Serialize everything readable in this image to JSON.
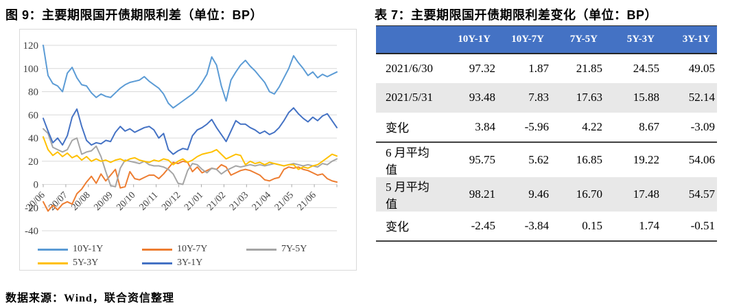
{
  "figure": {
    "title": "图 9：主要期限国开债期限利差（单位：BP）",
    "source_note": "数据来源：Wind，联合资信整理"
  },
  "table": {
    "title": "表 7：主要期限国开债期限利差变化（单位：BP）",
    "header_bg": "#4472c4",
    "header_text_color": "#ffffff",
    "shaded_row_bg": "#e8e8e8",
    "columns": [
      "10Y-1Y",
      "10Y-7Y",
      "7Y-5Y",
      "5Y-3Y",
      "3Y-1Y"
    ],
    "rows": [
      {
        "label": "2021/6/30",
        "values": [
          "97.32",
          "1.87",
          "21.85",
          "24.55",
          "49.05"
        ],
        "shaded": false,
        "block_end": false
      },
      {
        "label": "2021/5/31",
        "values": [
          "93.48",
          "7.83",
          "17.63",
          "15.88",
          "52.14"
        ],
        "shaded": true,
        "block_end": false
      },
      {
        "label": "变化",
        "values": [
          "3.84",
          "-5.96",
          "4.22",
          "8.67",
          "-3.09"
        ],
        "shaded": false,
        "block_end": true
      },
      {
        "label": "6 月平均值",
        "values": [
          "95.75",
          "5.62",
          "16.85",
          "19.22",
          "54.06"
        ],
        "shaded": false,
        "block_end": false
      },
      {
        "label": "5 月平均值",
        "values": [
          "98.21",
          "9.46",
          "16.70",
          "17.48",
          "54.57"
        ],
        "shaded": true,
        "block_end": false
      },
      {
        "label": "变化",
        "values": [
          "-2.45",
          "-3.84",
          "0.15",
          "1.74",
          "-0.51"
        ],
        "shaded": false,
        "block_end": false
      }
    ]
  },
  "chart_data": {
    "type": "line",
    "title": "图 9：主要期限国开债期限利差（单位：BP）",
    "unit": "BP",
    "grid": true,
    "legend_position": "bottom",
    "ylim": [
      -40,
      120
    ],
    "y_ticks": [
      120,
      100,
      80,
      60,
      40,
      20,
      0,
      -20,
      -40
    ],
    "x_tick_labels": [
      "20/06",
      "20/07",
      "20/08",
      "20/09",
      "20/10",
      "20/11",
      "20/12",
      "21/01",
      "21/02",
      "21/03",
      "21/04",
      "21/05",
      "21/06"
    ],
    "colors": {
      "grid": "#d9d9d9",
      "axis_text": "#404040",
      "tick": "#a6a6a6"
    },
    "series": [
      {
        "name": "10Y-1Y",
        "color": "#5b9bd5",
        "values": [
          120,
          94,
          87,
          85,
          80,
          96,
          101,
          92,
          86,
          85,
          79,
          75,
          78,
          76,
          75,
          79,
          83,
          86,
          88,
          89,
          90,
          93,
          89,
          86,
          83,
          78,
          70,
          66,
          69,
          72,
          75,
          78,
          82,
          88,
          95,
          110,
          103,
          85,
          72,
          90,
          97,
          103,
          107,
          102,
          98,
          93,
          88,
          80,
          78,
          84,
          92,
          100,
          111,
          105,
          100,
          94,
          97,
          92,
          95,
          93,
          95,
          97
        ]
      },
      {
        "name": "10Y-7Y",
        "color": "#ed7d31",
        "values": [
          -15,
          -23,
          -18,
          -22,
          -17,
          -15,
          -17,
          -8,
          -4,
          2,
          7,
          1,
          9,
          3,
          8,
          13,
          -3,
          -2,
          11,
          5,
          4,
          6,
          8,
          8,
          5,
          9,
          14,
          19,
          18,
          20,
          19,
          11,
          15,
          10,
          12,
          14,
          13,
          17,
          15,
          8,
          10,
          12,
          13,
          12,
          10,
          8,
          4,
          3,
          5,
          6,
          13,
          15,
          14,
          15,
          13,
          12,
          10,
          8,
          9,
          5,
          3,
          2
        ]
      },
      {
        "name": "7Y-5Y",
        "color": "#a5a5a5",
        "values": [
          48,
          44,
          32,
          30,
          28,
          30,
          38,
          40,
          26,
          28,
          29,
          33,
          24,
          11,
          -1,
          -2,
          14,
          21,
          20,
          19,
          18,
          20,
          17,
          16,
          16,
          15,
          13,
          9,
          1,
          0,
          12,
          18,
          17,
          13,
          10,
          14,
          13,
          9,
          12,
          14,
          16,
          15,
          16,
          17,
          16,
          17,
          16,
          17,
          18,
          17,
          16,
          17,
          18,
          17,
          16,
          17,
          16,
          15,
          18,
          17,
          20,
          22
        ]
      },
      {
        "name": "5Y-3Y",
        "color": "#ffc000",
        "values": [
          41,
          30,
          25,
          28,
          24,
          27,
          23,
          25,
          21,
          24,
          20,
          22,
          20,
          21,
          19,
          21,
          22,
          20,
          22,
          23,
          21,
          20,
          19,
          21,
          20,
          22,
          21,
          17,
          20,
          22,
          19,
          21,
          24,
          26,
          27,
          28,
          30,
          26,
          22,
          24,
          26,
          25,
          17,
          20,
          18,
          19,
          17,
          19,
          18,
          17,
          16,
          17,
          17,
          13,
          15,
          14,
          16,
          17,
          20,
          23,
          26,
          24.5
        ]
      },
      {
        "name": "3Y-1Y",
        "color": "#4472c4",
        "values": [
          57,
          46,
          36,
          40,
          34,
          42,
          58,
          65,
          50,
          38,
          34,
          36,
          35,
          38,
          37,
          45,
          50,
          46,
          48,
          45,
          47,
          49,
          50,
          47,
          40,
          44,
          30,
          26,
          29,
          31,
          30,
          42,
          47,
          49,
          52,
          56,
          49,
          43,
          37,
          46,
          55,
          52,
          52,
          49,
          47,
          44,
          46,
          43,
          45,
          49,
          55,
          62,
          66,
          61,
          57,
          54,
          58,
          55,
          59,
          61,
          55,
          49
        ]
      }
    ]
  }
}
